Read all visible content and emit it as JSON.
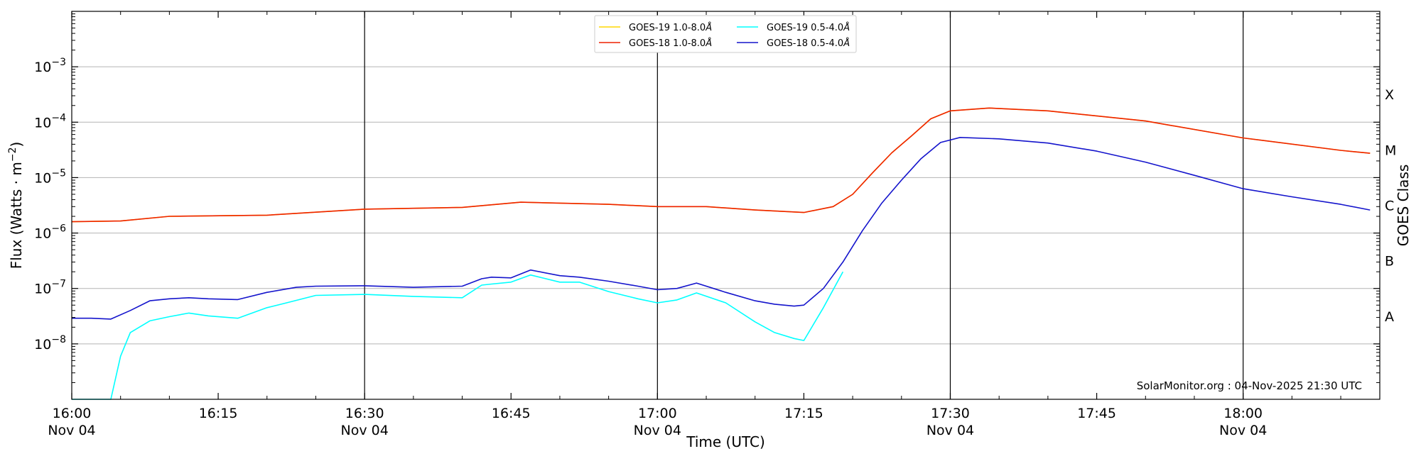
{
  "chart_data": {
    "type": "line",
    "xlabel": "Time (UTC)",
    "ylabel_main": "Flux (Watts · m",
    "ylabel_sup": "−2",
    "ylabel_close": ")",
    "right_ylabel": "GOES Class",
    "yscale": "log",
    "ylim": [
      1e-09,
      0.01
    ],
    "xlim_minutes": [
      0,
      134
    ],
    "xlim": [
      "2025-11-04 16:00",
      "2025-11-04 18:14"
    ],
    "grid": "horizontal at decades",
    "y_ticks": [
      {
        "value": 1e-08,
        "base": "10",
        "exp": "−8"
      },
      {
        "value": 1e-07,
        "base": "10",
        "exp": "−7"
      },
      {
        "value": 1e-06,
        "base": "10",
        "exp": "−6"
      },
      {
        "value": 1e-05,
        "base": "10",
        "exp": "−5"
      },
      {
        "value": 0.0001,
        "base": "10",
        "exp": "−4"
      },
      {
        "value": 0.001,
        "base": "10",
        "exp": "−3"
      }
    ],
    "x_ticks": [
      {
        "time": "2025-11-04 16:00",
        "line1": "16:00",
        "line2": "Nov 04",
        "vline": false
      },
      {
        "time": "2025-11-04 16:15",
        "line1": "16:15",
        "line2": "",
        "vline": false
      },
      {
        "time": "2025-11-04 16:30",
        "line1": "16:30",
        "line2": "Nov 04",
        "vline": true
      },
      {
        "time": "2025-11-04 16:45",
        "line1": "16:45",
        "line2": "",
        "vline": false
      },
      {
        "time": "2025-11-04 17:00",
        "line1": "17:00",
        "line2": "Nov 04",
        "vline": true
      },
      {
        "time": "2025-11-04 17:15",
        "line1": "17:15",
        "line2": "",
        "vline": false
      },
      {
        "time": "2025-11-04 17:30",
        "line1": "17:30",
        "line2": "Nov 04",
        "vline": true
      },
      {
        "time": "2025-11-04 17:45",
        "line1": "17:45",
        "line2": "",
        "vline": false
      },
      {
        "time": "2025-11-04 18:00",
        "line1": "18:00",
        "line2": "Nov 04",
        "vline": true
      }
    ],
    "goes_classes": [
      {
        "label": "A",
        "value": 3.16e-08
      },
      {
        "label": "B",
        "value": 3.16e-07
      },
      {
        "label": "C",
        "value": 3.16e-06
      },
      {
        "label": "M",
        "value": 3.16e-05
      },
      {
        "label": "X",
        "value": 0.000316
      }
    ],
    "legend": [
      {
        "label": "GOES-19 1.0-8.0",
        "color": "#ffd700",
        "series": "goes19_long"
      },
      {
        "label": "GOES-18 1.0-8.0",
        "color": "#ee2200",
        "series": "goes18_long"
      },
      {
        "label": "GOES-19 0.5-4.0",
        "color": "#00ffff",
        "series": "goes19_short"
      },
      {
        "label": "GOES-18 0.5-4.0",
        "color": "#1414cc",
        "series": "goes18_short"
      }
    ],
    "legend_unit": "Å",
    "series": [
      {
        "name": "GOES-19 1.0-8.0Å",
        "color": "#ffd700",
        "x": [
          "2025-11-04 16:00",
          "2025-11-04 16:05",
          "2025-11-04 16:10",
          "2025-11-04 16:20",
          "2025-11-04 16:30",
          "2025-11-04 16:40",
          "2025-11-04 16:46",
          "2025-11-04 16:55",
          "2025-11-04 17:00",
          "2025-11-04 17:05",
          "2025-11-04 17:10",
          "2025-11-04 17:15",
          "2025-11-04 17:18",
          "2025-11-04 17:20",
          "2025-11-04 17:22",
          "2025-11-04 17:24",
          "2025-11-04 17:26",
          "2025-11-04 17:28",
          "2025-11-04 17:30",
          "2025-11-04 17:34",
          "2025-11-04 17:40",
          "2025-11-04 17:50",
          "2025-11-04 18:00",
          "2025-11-04 18:10",
          "2025-11-04 18:13"
        ],
        "y": [
          1.6e-06,
          1.65e-06,
          2e-06,
          2.1e-06,
          2.7e-06,
          2.9e-06,
          3.6e-06,
          3.3e-06,
          3e-06,
          3e-06,
          2.6e-06,
          2.35e-06,
          3e-06,
          5e-06,
          1.2e-05,
          2.8e-05,
          5.6e-05,
          0.000115,
          0.00016,
          0.00018,
          0.00016,
          0.000105,
          5.2e-05,
          3.1e-05,
          2.75e-05
        ]
      },
      {
        "name": "GOES-18 1.0-8.0Å",
        "color": "#ee2200",
        "x": [
          "2025-11-04 16:00",
          "2025-11-04 16:05",
          "2025-11-04 16:10",
          "2025-11-04 16:20",
          "2025-11-04 16:30",
          "2025-11-04 16:40",
          "2025-11-04 16:46",
          "2025-11-04 16:55",
          "2025-11-04 17:00",
          "2025-11-04 17:05",
          "2025-11-04 17:10",
          "2025-11-04 17:15",
          "2025-11-04 17:18",
          "2025-11-04 17:20",
          "2025-11-04 17:22",
          "2025-11-04 17:24",
          "2025-11-04 17:26",
          "2025-11-04 17:28",
          "2025-11-04 17:30",
          "2025-11-04 17:34",
          "2025-11-04 17:40",
          "2025-11-04 17:50",
          "2025-11-04 18:00",
          "2025-11-04 18:10",
          "2025-11-04 18:13"
        ],
        "y": [
          1.6e-06,
          1.65e-06,
          2e-06,
          2.1e-06,
          2.7e-06,
          2.9e-06,
          3.6e-06,
          3.3e-06,
          3e-06,
          3e-06,
          2.6e-06,
          2.35e-06,
          3e-06,
          5e-06,
          1.2e-05,
          2.8e-05,
          5.6e-05,
          0.000115,
          0.00016,
          0.00018,
          0.00016,
          0.000105,
          5.2e-05,
          3.1e-05,
          2.75e-05
        ]
      },
      {
        "name": "GOES-19 0.5-4.0Å",
        "color": "#00ffff",
        "x": [
          "2025-11-04 16:00",
          "2025-11-04 16:04",
          "2025-11-04 16:05",
          "2025-11-04 16:06",
          "2025-11-04 16:08",
          "2025-11-04 16:10",
          "2025-11-04 16:12",
          "2025-11-04 16:14",
          "2025-11-04 16:17",
          "2025-11-04 16:20",
          "2025-11-04 16:22",
          "2025-11-04 16:25",
          "2025-11-04 16:30",
          "2025-11-04 16:35",
          "2025-11-04 16:40",
          "2025-11-04 16:42",
          "2025-11-04 16:43",
          "2025-11-04 16:45",
          "2025-11-04 16:47",
          "2025-11-04 16:50",
          "2025-11-04 16:52",
          "2025-11-04 16:55",
          "2025-11-04 16:58",
          "2025-11-04 17:00",
          "2025-11-04 17:02",
          "2025-11-04 17:04",
          "2025-11-04 17:07",
          "2025-11-04 17:10",
          "2025-11-04 17:12",
          "2025-11-04 17:14",
          "2025-11-04 17:15",
          "2025-11-04 17:17",
          "2025-11-04 17:19"
        ],
        "y": [
          1e-09,
          1e-09,
          6e-09,
          1.6e-08,
          2.6e-08,
          3.1e-08,
          3.6e-08,
          3.2e-08,
          2.9e-08,
          4.5e-08,
          5.5e-08,
          7.5e-08,
          7.8e-08,
          7.2e-08,
          6.8e-08,
          1.15e-07,
          1.2e-07,
          1.3e-07,
          1.75e-07,
          1.3e-07,
          1.3e-07,
          8.8e-08,
          6.5e-08,
          5.5e-08,
          6.2e-08,
          8.3e-08,
          5.5e-08,
          2.5e-08,
          1.6e-08,
          1.25e-08,
          1.15e-08,
          4.5e-08,
          2e-07
        ]
      },
      {
        "name": "GOES-18 0.5-4.0Å",
        "color": "#1414cc",
        "x": [
          "2025-11-04 16:00",
          "2025-11-04 16:02",
          "2025-11-04 16:04",
          "2025-11-04 16:06",
          "2025-11-04 16:08",
          "2025-11-04 16:10",
          "2025-11-04 16:12",
          "2025-11-04 16:14",
          "2025-11-04 16:17",
          "2025-11-04 16:20",
          "2025-11-04 16:23",
          "2025-11-04 16:25",
          "2025-11-04 16:30",
          "2025-11-04 16:35",
          "2025-11-04 16:40",
          "2025-11-04 16:42",
          "2025-11-04 16:43",
          "2025-11-04 16:45",
          "2025-11-04 16:47",
          "2025-11-04 16:50",
          "2025-11-04 16:52",
          "2025-11-04 16:55",
          "2025-11-04 16:58",
          "2025-11-04 17:00",
          "2025-11-04 17:02",
          "2025-11-04 17:04",
          "2025-11-04 17:07",
          "2025-11-04 17:10",
          "2025-11-04 17:12",
          "2025-11-04 17:14",
          "2025-11-04 17:15",
          "2025-11-04 17:17",
          "2025-11-04 17:19",
          "2025-11-04 17:21",
          "2025-11-04 17:23",
          "2025-11-04 17:25",
          "2025-11-04 17:27",
          "2025-11-04 17:29",
          "2025-11-04 17:31",
          "2025-11-04 17:35",
          "2025-11-04 17:40",
          "2025-11-04 17:45",
          "2025-11-04 17:50",
          "2025-11-04 17:55",
          "2025-11-04 18:00",
          "2025-11-04 18:05",
          "2025-11-04 18:10",
          "2025-11-04 18:13"
        ],
        "y": [
          2.9e-08,
          2.9e-08,
          2.8e-08,
          4e-08,
          6e-08,
          6.5e-08,
          6.8e-08,
          6.5e-08,
          6.3e-08,
          8.5e-08,
          1.05e-07,
          1.1e-07,
          1.12e-07,
          1.05e-07,
          1.1e-07,
          1.5e-07,
          1.6e-07,
          1.55e-07,
          2.15e-07,
          1.7e-07,
          1.6e-07,
          1.35e-07,
          1.1e-07,
          9.5e-08,
          1e-07,
          1.25e-07,
          8.5e-08,
          6e-08,
          5.2e-08,
          4.8e-08,
          5e-08,
          1e-07,
          3e-07,
          1.1e-06,
          3.5e-06,
          9e-06,
          2.2e-05,
          4.3e-05,
          5.3e-05,
          5e-05,
          4.2e-05,
          3e-05,
          1.9e-05,
          1.1e-05,
          6.3e-06,
          4.5e-06,
          3.3e-06,
          2.6e-06
        ]
      }
    ],
    "watermark": "SolarMonitor.org : 04-Nov-2025 21:30 UTC"
  }
}
